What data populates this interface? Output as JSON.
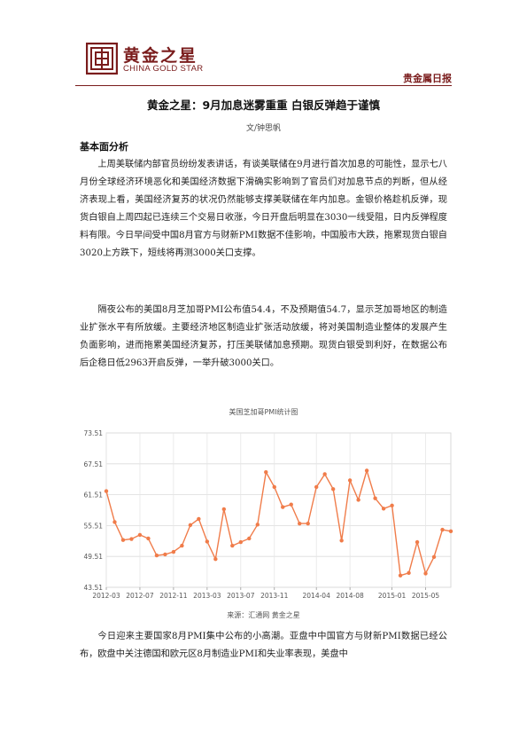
{
  "header": {
    "logo_cn": "黄金之星",
    "logo_en": "CHINA GOLD STAR",
    "report_name": "贵金属日报"
  },
  "article": {
    "title": "黄金之星：9月加息迷雾重重  白银反弹趋于谨慎",
    "author": "文/钟思帆",
    "section_heading": "基本面分析",
    "paragraphs": [
      "上周美联储内部官员纷纷发表讲话，有谈美联储在9月进行首次加息的可能性，显示七八月份全球经济环境恶化和美国经济数据下滑确实影响到了官员们对加息节点的判断，但从经济表现上看，美国经济复苏的状况仍然能够支撑美联储在年内加息。金银价格趁机反弹，现货白银自上周四起已连续三个交易日收涨，今日开盘后明显在3030一线受阻，日内反弹程度料有限。今日早间受中国8月官方与财新PMI数据不佳影响，中国股市大跌，拖累现货白银自3020上方跌下，短线将再测3000关口支撑。",
      "隔夜公布的美国8月芝加哥PMI公布值54.4，不及预期值54.7，显示芝加哥地区的制造业扩张水平有所放缓。主要经济地区制造业扩张活动放缓，将对美国制造业整体的发展产生负面影响，进而拖累美国经济复苏，打压美联储加息预期。现货白银受到利好，在数据公布后企稳日低2963开启反弹，一举升破3000关口。",
      "今日迎来主要国家8月PMI集中公布的小高潮。亚盘中中国官方与财新PMI数据已经公布，欧盘中关注德国和欧元区8月制造业PMI和失业率表现，美盘中"
    ],
    "chart_caption": "美国芝加哥PMI统计图",
    "chart_source": "来源：汇通网  黄金之星"
  },
  "chart_data": {
    "type": "line",
    "title": "美国芝加哥PMI统计图",
    "xlabel": "",
    "ylabel": "",
    "ylim": [
      43.51,
      73.51
    ],
    "y_ticks": [
      "73.51",
      "67.51",
      "61.51",
      "55.51",
      "49.51",
      "43.51"
    ],
    "x_tick_labels": [
      "2012-03",
      "2012-07",
      "2012-11",
      "2013-03",
      "2013-07",
      "2013-11",
      "2014-04",
      "2014-08",
      "2015-01",
      "2015-05"
    ],
    "grid": true,
    "line_color": "#f07c4a",
    "x": [
      "2012-03",
      "2012-04",
      "2012-05",
      "2012-06",
      "2012-07",
      "2012-08",
      "2012-09",
      "2012-10",
      "2012-11",
      "2012-12",
      "2013-01",
      "2013-02",
      "2013-03",
      "2013-04",
      "2013-05",
      "2013-06",
      "2013-07",
      "2013-08",
      "2013-09",
      "2013-10",
      "2013-11",
      "2013-12",
      "2014-01",
      "2014-02",
      "2014-03",
      "2014-04",
      "2014-05",
      "2014-06",
      "2014-07",
      "2014-08",
      "2014-09",
      "2014-10",
      "2014-11",
      "2014-12",
      "2015-01",
      "2015-02",
      "2015-03",
      "2015-04",
      "2015-05",
      "2015-06",
      "2015-07",
      "2015-08"
    ],
    "series": [
      {
        "values": [
          62.2,
          56.2,
          52.7,
          52.9,
          53.7,
          53.0,
          49.7,
          49.9,
          50.4,
          51.6,
          55.6,
          56.8,
          52.4,
          49.0,
          58.7,
          51.6,
          52.3,
          53.0,
          55.7,
          65.9,
          63.0,
          59.1,
          59.6,
          55.9,
          55.9,
          63.0,
          65.5,
          62.6,
          52.6,
          64.3,
          60.5,
          66.2,
          60.8,
          58.8,
          59.4,
          45.8,
          46.3,
          52.3,
          46.2,
          49.4,
          54.7,
          54.4
        ]
      }
    ]
  }
}
